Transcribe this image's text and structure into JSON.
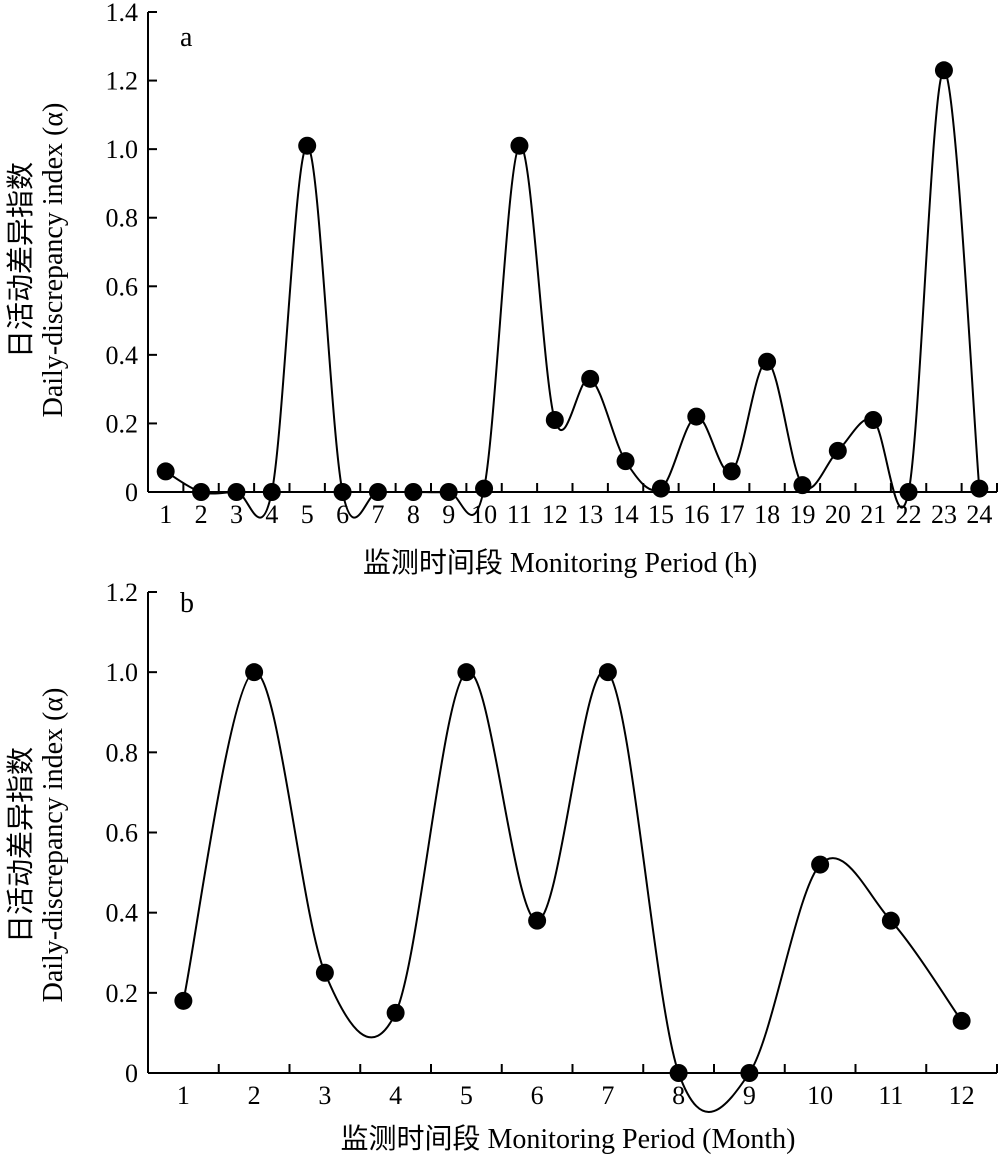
{
  "chart_data": [
    {
      "type": "line",
      "panel_label": "a",
      "xlabel": "监测时间段 Monitoring Period (h)",
      "ylabel_cn": "日活动差异指数",
      "ylabel_en": "Daily-discrepancy index (α)",
      "x": [
        1,
        2,
        3,
        4,
        5,
        6,
        7,
        8,
        9,
        10,
        11,
        12,
        13,
        14,
        15,
        16,
        17,
        18,
        19,
        20,
        21,
        22,
        23,
        24
      ],
      "y": [
        0.06,
        0,
        0,
        0,
        1.01,
        0,
        0,
        0,
        0,
        0.01,
        1.01,
        0.21,
        0.33,
        0.09,
        0.01,
        0.22,
        0.06,
        0.38,
        0.02,
        0.12,
        0.21,
        0,
        1.23,
        0.01
      ],
      "ylim": [
        0,
        1.4
      ],
      "yticks": [
        0,
        0.2,
        0.4,
        0.6,
        0.8,
        1.0,
        1.2,
        1.4
      ],
      "ytick_labels": [
        "0",
        "0.2",
        "0.4",
        "0.6",
        "0.8",
        "1.0",
        "1.2",
        "1.4"
      ],
      "xticks": [
        1,
        2,
        3,
        4,
        5,
        6,
        7,
        8,
        9,
        10,
        11,
        12,
        13,
        14,
        15,
        16,
        17,
        18,
        19,
        20,
        21,
        22,
        23,
        24
      ],
      "grid": false,
      "smooth": true
    },
    {
      "type": "line",
      "panel_label": "b",
      "xlabel": "监测时间段 Monitoring Period (Month)",
      "ylabel_cn": "日活动差异指数",
      "ylabel_en": "Daily-discrepancy index (α)",
      "x": [
        1,
        2,
        3,
        4,
        5,
        6,
        7,
        8,
        9,
        10,
        11,
        12
      ],
      "y": [
        0.18,
        1.0,
        0.25,
        0.15,
        1.0,
        0.38,
        1.0,
        0,
        0,
        0.52,
        0.38,
        0.13
      ],
      "ylim": [
        0,
        1.2
      ],
      "yticks": [
        0,
        0.2,
        0.4,
        0.6,
        0.8,
        1.0,
        1.2
      ],
      "ytick_labels": [
        "0",
        "0.2",
        "0.4",
        "0.6",
        "0.8",
        "1.0",
        "1.2"
      ],
      "xticks": [
        1,
        2,
        3,
        4,
        5,
        6,
        7,
        8,
        9,
        10,
        11,
        12
      ],
      "grid": false,
      "smooth": true
    }
  ]
}
